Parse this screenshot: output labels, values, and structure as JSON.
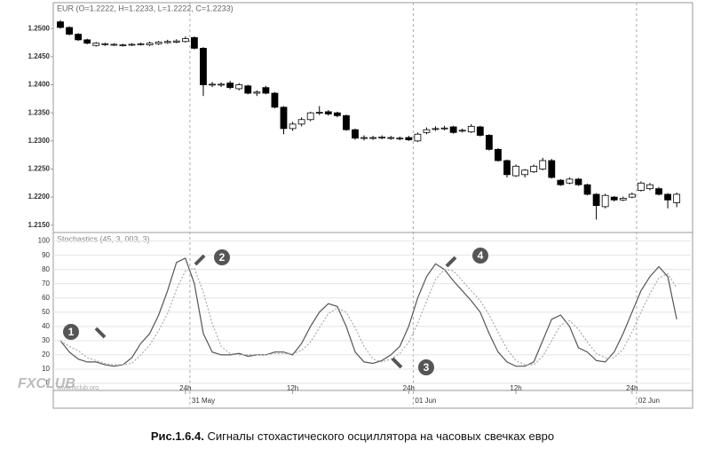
{
  "chart_data": [
    {
      "type": "candlestick",
      "title": "EUR (O=1.2222, H=1.2233, L=1.2222, C=1.2233)",
      "up_color": "#ffffff",
      "down_color": "#000000",
      "categories": [
        null,
        null,
        null,
        null,
        null,
        null,
        null,
        null,
        null,
        null,
        null,
        null,
        null,
        null,
        "24h",
        null,
        null,
        null,
        null,
        null,
        null,
        null,
        null,
        null,
        null,
        null,
        "12h",
        null,
        null,
        null,
        null,
        null,
        null,
        null,
        null,
        null,
        null,
        null,
        null,
        "24h",
        null,
        null,
        null,
        null,
        null,
        null,
        null,
        null,
        null,
        null,
        null,
        "12h",
        null,
        null,
        null,
        null,
        null,
        null,
        null,
        null,
        null,
        null,
        null,
        null,
        "24h",
        null,
        null,
        null,
        null,
        null
      ],
      "dates": [
        null,
        null,
        null,
        null,
        null,
        null,
        null,
        null,
        null,
        null,
        null,
        null,
        null,
        null,
        null,
        "31 May",
        null,
        null,
        null,
        null,
        null,
        null,
        null,
        null,
        null,
        null,
        null,
        null,
        null,
        null,
        null,
        null,
        null,
        null,
        null,
        null,
        null,
        null,
        null,
        null,
        "01 Jun",
        null,
        null,
        null,
        null,
        null,
        null,
        null,
        null,
        null,
        null,
        null,
        null,
        null,
        null,
        null,
        null,
        null,
        null,
        null,
        null,
        null,
        null,
        null,
        null,
        "02 Jun",
        null,
        null,
        null,
        null
      ],
      "open": [
        1.2512,
        1.2502,
        1.249,
        1.248,
        1.247,
        1.2472,
        1.2471,
        1.247,
        1.2471,
        1.2472,
        1.2471,
        1.2473,
        1.2475,
        1.2476,
        1.2477,
        1.2484,
        1.2465,
        1.24,
        1.24,
        1.2403,
        1.2393,
        1.2398,
        1.2385,
        1.2395,
        1.2385,
        1.236,
        1.2322,
        1.233,
        1.2338,
        1.235,
        1.2352,
        1.235,
        1.2345,
        1.232,
        1.2305,
        1.2305,
        1.2306,
        1.2305,
        1.2304,
        1.2306,
        1.23,
        1.2315,
        1.2321,
        1.2322,
        1.2325,
        1.2318,
        1.2316,
        1.2325,
        1.231,
        1.2285,
        1.2265,
        1.2238,
        1.224,
        1.2245,
        1.225,
        1.2265,
        1.223,
        1.2225,
        1.2232,
        1.2222,
        1.2205,
        1.2183,
        1.22,
        1.2195,
        1.22,
        1.2212,
        1.2215,
        1.2215,
        1.2205,
        1.219
      ],
      "high": [
        1.2515,
        1.2504,
        1.2492,
        1.2482,
        1.2476,
        1.2475,
        1.2474,
        1.2473,
        1.2474,
        1.2475,
        1.2477,
        1.2478,
        1.248,
        1.2481,
        1.2486,
        1.2486,
        1.2467,
        1.2405,
        1.2404,
        1.2407,
        1.2403,
        1.24,
        1.239,
        1.2398,
        1.2387,
        1.2362,
        1.2334,
        1.2342,
        1.2352,
        1.2362,
        1.2355,
        1.2352,
        1.2347,
        1.2322,
        1.231,
        1.2309,
        1.231,
        1.2309,
        1.2308,
        1.2309,
        1.2315,
        1.2324,
        1.2326,
        1.2327,
        1.2327,
        1.2322,
        1.233,
        1.2327,
        1.2312,
        1.2287,
        1.2267,
        1.2258,
        1.225,
        1.2258,
        1.227,
        1.2268,
        1.2232,
        1.2235,
        1.2234,
        1.2224,
        1.2207,
        1.2206,
        1.2202,
        1.2201,
        1.2208,
        1.2228,
        1.2225,
        1.2218,
        1.2207,
        1.2208
      ],
      "low": [
        1.25,
        1.2488,
        1.2478,
        1.2472,
        1.2468,
        1.2469,
        1.2469,
        1.2468,
        1.2469,
        1.247,
        1.2469,
        1.2471,
        1.2473,
        1.2474,
        1.2475,
        1.2463,
        1.238,
        1.2396,
        1.2396,
        1.2392,
        1.239,
        1.2383,
        1.238,
        1.2383,
        1.2358,
        1.2312,
        1.2318,
        1.2326,
        1.2335,
        1.2346,
        1.2345,
        1.2342,
        1.2318,
        1.2302,
        1.2301,
        1.2302,
        1.2303,
        1.2302,
        1.2301,
        1.23,
        1.2298,
        1.2312,
        1.2318,
        1.2319,
        1.2313,
        1.2315,
        1.2314,
        1.2308,
        1.2283,
        1.2263,
        1.2235,
        1.2236,
        1.2235,
        1.2243,
        1.2248,
        1.2233,
        1.222,
        1.2223,
        1.222,
        1.2203,
        1.216,
        1.218,
        1.2192,
        1.2193,
        1.2198,
        1.221,
        1.2212,
        1.2203,
        1.218,
        1.2182
      ],
      "close": [
        1.2502,
        1.249,
        1.248,
        1.2474,
        1.2474,
        1.2473,
        1.2472,
        1.2471,
        1.2472,
        1.2473,
        1.2474,
        1.2476,
        1.2477,
        1.2478,
        1.2482,
        1.2465,
        1.24,
        1.2401,
        1.2401,
        1.2395,
        1.24,
        1.2385,
        1.2387,
        1.2385,
        1.236,
        1.2322,
        1.233,
        1.2338,
        1.235,
        1.2351,
        1.2348,
        1.2345,
        1.232,
        1.2305,
        1.2306,
        1.2306,
        1.2307,
        1.2306,
        1.2305,
        1.2302,
        1.2312,
        1.232,
        1.2322,
        1.2323,
        1.2315,
        1.2319,
        1.2326,
        1.231,
        1.2285,
        1.2265,
        1.224,
        1.2255,
        1.2248,
        1.2255,
        1.2265,
        1.2235,
        1.2222,
        1.2232,
        1.2222,
        1.2205,
        1.2185,
        1.2203,
        1.2195,
        1.2198,
        1.2205,
        1.2225,
        1.2222,
        1.2205,
        1.2195,
        1.2205
      ],
      "ylim": [
        1.2137,
        1.2543
      ],
      "yticks": [
        {
          "value": 1.215,
          "label": "1.2150"
        },
        {
          "value": 1.22,
          "label": "1.2200"
        },
        {
          "value": 1.225,
          "label": "1.2250"
        },
        {
          "value": 1.23,
          "label": "1.2300"
        },
        {
          "value": 1.235,
          "label": "1.2350"
        },
        {
          "value": 1.24,
          "label": "1.2400"
        },
        {
          "value": 1.245,
          "label": "1.2450"
        },
        {
          "value": 1.25,
          "label": "1.2500"
        }
      ]
    },
    {
      "type": "line",
      "title": "Stochastics (45, 3, 003, 3)",
      "grid": true,
      "series": [
        {
          "color": "#555555",
          "values": [
            30,
            22,
            17,
            15,
            15,
            13,
            12,
            13,
            18,
            28,
            35,
            48,
            65,
            85,
            88,
            70,
            35,
            22,
            20,
            20,
            21,
            19,
            20,
            20,
            22,
            22,
            20,
            28,
            40,
            50,
            56,
            54,
            40,
            22,
            15,
            14,
            16,
            20,
            26,
            40,
            60,
            75,
            84,
            80,
            72,
            65,
            58,
            50,
            35,
            22,
            15,
            12,
            12,
            15,
            30,
            45,
            48,
            40,
            25,
            22,
            16,
            15,
            22,
            35,
            50,
            65,
            75,
            82,
            75,
            45
          ]
        },
        {
          "color": "#aaaaaa",
          "dashed": true,
          "values": [
            30,
            26,
            23,
            18,
            16,
            14,
            13,
            13,
            14,
            20,
            27,
            37,
            49,
            66,
            79,
            81,
            64,
            42,
            26,
            21,
            20,
            20,
            20,
            20,
            21,
            21,
            21,
            23,
            29,
            39,
            49,
            53,
            50,
            39,
            26,
            17,
            15,
            17,
            21,
            29,
            42,
            58,
            73,
            80,
            79,
            72,
            65,
            58,
            48,
            36,
            24,
            16,
            13,
            13,
            19,
            30,
            41,
            44,
            38,
            29,
            21,
            18,
            18,
            24,
            36,
            50,
            63,
            74,
            77,
            67
          ]
        }
      ],
      "ylim": [
        -5,
        106
      ],
      "yticks": [
        0,
        10,
        20,
        30,
        40,
        50,
        60,
        70,
        80,
        90,
        100
      ],
      "annotations": [
        "1",
        "2",
        "3",
        "4"
      ],
      "watermark": "FXCLUB",
      "watermark_url": "www.fxclub.org"
    }
  ],
  "caption_label": "Рис.1.6.4.",
  "caption": "Сигналы стохастического осциллятора на часовых свечках евро"
}
